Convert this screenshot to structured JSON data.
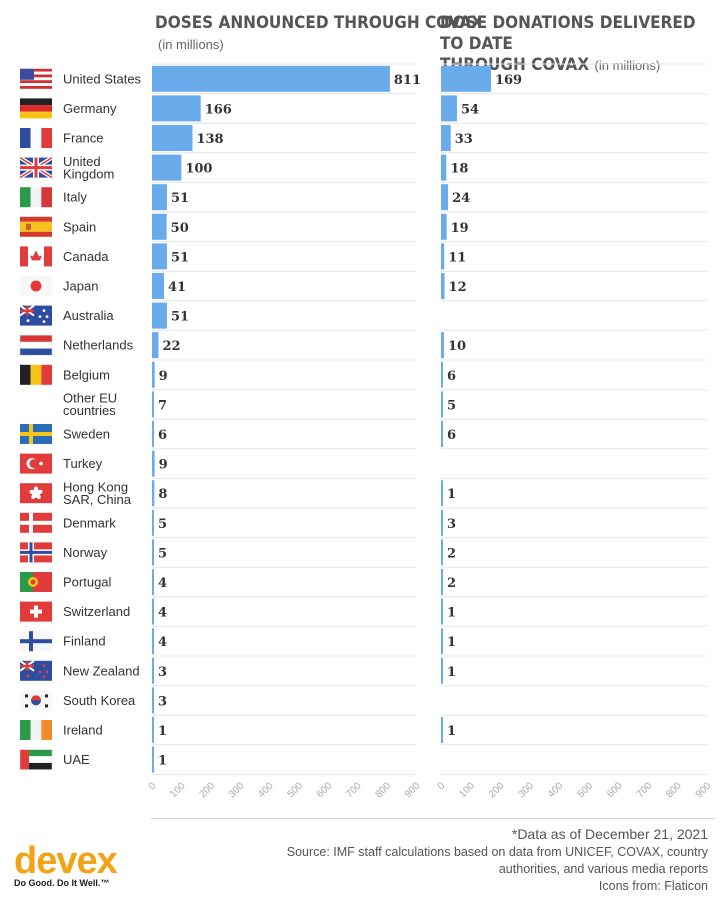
{
  "titles": {
    "left_title": "DOSES ANNOUNCED THROUGH COVAX",
    "left_sub": "(in millions)",
    "right_title_1": "DOSE DONATIONS DELIVERED TO DATE",
    "right_title_2": "THROUGH COVAX",
    "right_sub": "(in millions)"
  },
  "footer": {
    "note": "*Data as of December 21, 2021",
    "source_1": "Source: IMF staff calculations based on data from UNICEF, COVAX, country",
    "source_2": "authorities, and various media reports",
    "icons": "Icons from: Flaticon"
  },
  "logo": {
    "word": "devex",
    "tagline": "Do Good. Do It Well.™"
  },
  "colors": {
    "bar": "#6aabec",
    "title": "#555555",
    "grid": "#e6e6e6",
    "logo": "#f2a316"
  },
  "chart_data": {
    "type": "bar",
    "orientation": "horizontal",
    "categories": [
      {
        "label": [
          "United States"
        ],
        "flag": "us"
      },
      {
        "label": [
          "Germany"
        ],
        "flag": "de"
      },
      {
        "label": [
          "France"
        ],
        "flag": "fr"
      },
      {
        "label": [
          "United",
          "Kingdom"
        ],
        "flag": "uk"
      },
      {
        "label": [
          "Italy"
        ],
        "flag": "it"
      },
      {
        "label": [
          "Spain"
        ],
        "flag": "es"
      },
      {
        "label": [
          "Canada"
        ],
        "flag": "ca"
      },
      {
        "label": [
          "Japan"
        ],
        "flag": "jp"
      },
      {
        "label": [
          "Australia"
        ],
        "flag": "au"
      },
      {
        "label": [
          "Netherlands"
        ],
        "flag": "nl"
      },
      {
        "label": [
          "Belgium"
        ],
        "flag": "be"
      },
      {
        "label": [
          "Other EU",
          "countries"
        ],
        "flag": ""
      },
      {
        "label": [
          "Sweden"
        ],
        "flag": "se"
      },
      {
        "label": [
          "Turkey"
        ],
        "flag": "tr"
      },
      {
        "label": [
          "Hong Kong",
          "SAR, China"
        ],
        "flag": "hk"
      },
      {
        "label": [
          "Denmark"
        ],
        "flag": "dk"
      },
      {
        "label": [
          "Norway"
        ],
        "flag": "no"
      },
      {
        "label": [
          "Portugal"
        ],
        "flag": "pt"
      },
      {
        "label": [
          "Switzerland"
        ],
        "flag": "ch"
      },
      {
        "label": [
          "Finland"
        ],
        "flag": "fi"
      },
      {
        "label": [
          "New Zealand"
        ],
        "flag": "nz"
      },
      {
        "label": [
          "South Korea"
        ],
        "flag": "kr"
      },
      {
        "label": [
          "Ireland"
        ],
        "flag": "ie"
      },
      {
        "label": [
          "UAE"
        ],
        "flag": "ae"
      }
    ],
    "series": [
      {
        "values": [
          811,
          166,
          138,
          100,
          51,
          50,
          51,
          41,
          51,
          22,
          9,
          7,
          6,
          9,
          8,
          5,
          5,
          4,
          4,
          4,
          3,
          3,
          1,
          1
        ]
      },
      {
        "values": [
          169,
          54,
          33,
          18,
          24,
          19,
          11,
          12,
          null,
          10,
          6,
          5,
          6,
          null,
          1,
          3,
          2,
          2,
          1,
          1,
          1,
          null,
          1,
          null
        ]
      }
    ],
    "xlim": [
      0,
      900
    ],
    "xticks": [
      0,
      100,
      200,
      300,
      400,
      500,
      600,
      700,
      800,
      900
    ],
    "grid": true
  }
}
